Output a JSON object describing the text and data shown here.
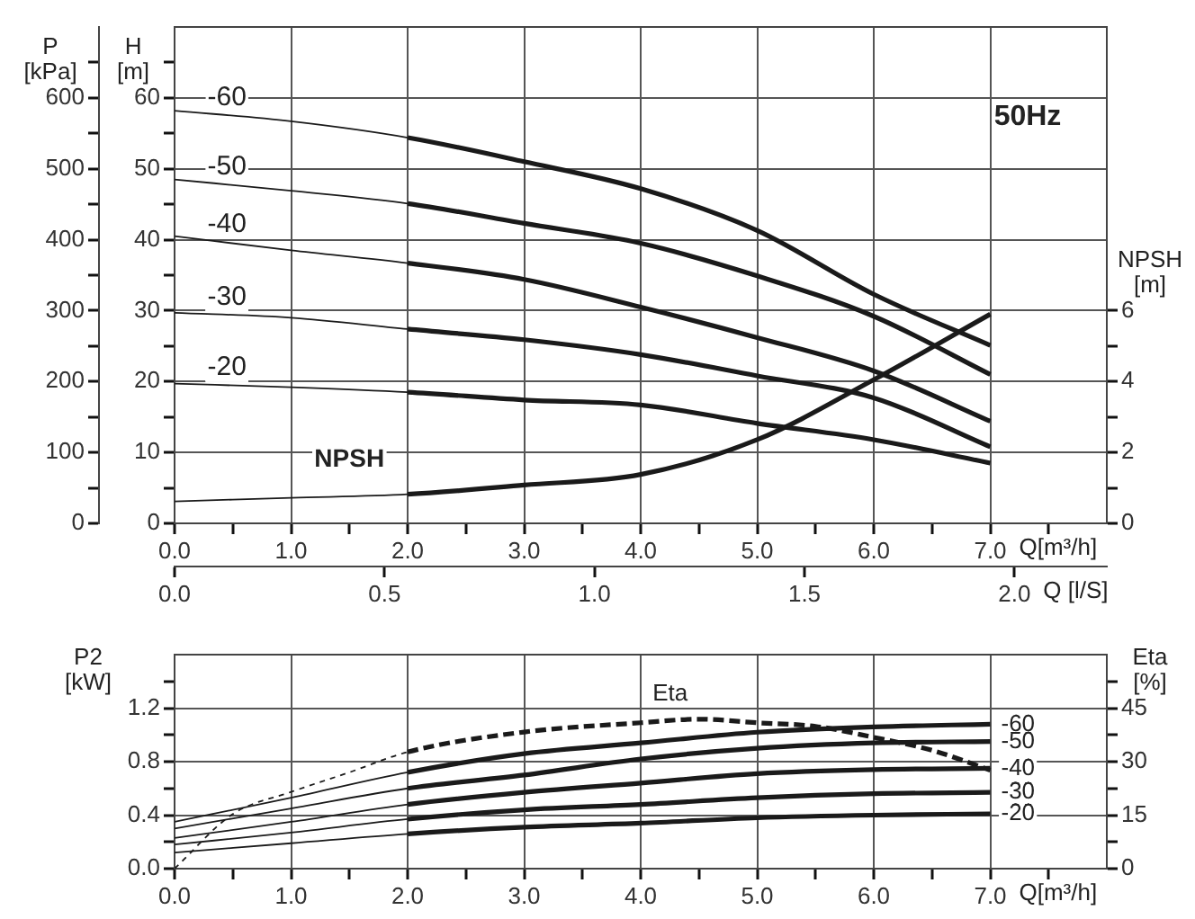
{
  "chart_data": [
    {
      "type": "line",
      "xlabel": "Q[m³/h]",
      "x2label": "Q [l/S]",
      "ylabel": "H [m]",
      "y2label": "NPSH [m]",
      "y3label": "P [kPa]",
      "annotations": [
        "50Hz"
      ],
      "x": [
        0,
        1,
        2,
        3,
        4,
        5,
        6,
        7
      ],
      "series": [
        {
          "name": "-60",
          "color": "#1a1a1a",
          "values": [
            58.2,
            56.7,
            54.4,
            51,
            47.2,
            41.3,
            32.3,
            25.1
          ]
        },
        {
          "name": "-50",
          "color": "#1a1a1a",
          "values": [
            48.5,
            46.9,
            45.1,
            42.3,
            39.5,
            34.9,
            29.2,
            21
          ]
        },
        {
          "name": "-40",
          "color": "#1a1a1a",
          "values": [
            40.5,
            38.5,
            36.7,
            34.4,
            30.5,
            26.2,
            21.5,
            14.4
          ]
        },
        {
          "name": "-30",
          "color": "#1a1a1a",
          "values": [
            29.7,
            29,
            27.4,
            25.9,
            23.8,
            20.8,
            17.7,
            10.8
          ]
        },
        {
          "name": "-20",
          "color": "#1a1a1a",
          "values": [
            19.7,
            19.2,
            18.5,
            17.4,
            16.7,
            14.1,
            11.8,
            8.5
          ]
        },
        {
          "name": "NPSH",
          "color": "#1a1a1a",
          "axis": "y2",
          "values": [
            0.62,
            0.72,
            0.82,
            1.08,
            1.38,
            2.36,
            4.05,
            5.9
          ]
        }
      ],
      "xlim": [
        0,
        8
      ],
      "xticks": [
        {
          "value": 0,
          "label": "0.0"
        },
        {
          "value": 0.5,
          "label": null
        },
        {
          "value": 1,
          "label": "1.0"
        },
        {
          "value": 1.5,
          "label": null
        },
        {
          "value": 2,
          "label": "2.0"
        },
        {
          "value": 2.5,
          "label": null
        },
        {
          "value": 3,
          "label": "3.0"
        },
        {
          "value": 3.5,
          "label": null
        },
        {
          "value": 4,
          "label": "4.0"
        },
        {
          "value": 4.5,
          "label": null
        },
        {
          "value": 5,
          "label": "5.0"
        },
        {
          "value": 5.5,
          "label": null
        },
        {
          "value": 6,
          "label": "6.0"
        },
        {
          "value": 6.5,
          "label": null
        },
        {
          "value": 7,
          "label": "7.0"
        },
        {
          "value": 7.5,
          "label": null
        }
      ],
      "x2lim": [
        0,
        2.22
      ],
      "x2ticks": [
        {
          "value": 0,
          "label": "0.0"
        },
        {
          "value": 0.5,
          "label": "0.5"
        },
        {
          "value": 1,
          "label": "1.0"
        },
        {
          "value": 1.5,
          "label": "1.5"
        },
        {
          "value": 2,
          "label": "2.0"
        }
      ],
      "ylim": [
        0,
        70
      ],
      "yticks": [
        0,
        {
          "value": 5,
          "label": null
        },
        10,
        {
          "value": 15,
          "label": null
        },
        20,
        {
          "value": 25,
          "label": null
        },
        30,
        {
          "value": 35,
          "label": null
        },
        40,
        {
          "value": 45,
          "label": null
        },
        50,
        {
          "value": 55,
          "label": null
        },
        60,
        {
          "value": 65,
          "label": null
        }
      ],
      "y2lim": [
        0,
        14
      ],
      "y2ticks": [
        0,
        {
          "value": 1,
          "label": null
        },
        2,
        {
          "value": 3,
          "label": null
        },
        4,
        {
          "value": 5,
          "label": null
        },
        6
      ],
      "y3lim": [
        0,
        700
      ],
      "y3ticks": [
        0,
        {
          "value": 50,
          "label": null
        },
        100,
        {
          "value": 150,
          "label": null
        },
        200,
        {
          "value": 250,
          "label": null
        },
        300,
        {
          "value": 350,
          "label": null
        },
        400,
        {
          "value": 450,
          "label": null
        },
        500,
        {
          "value": 550,
          "label": null
        },
        600,
        {
          "value": 650,
          "label": null
        }
      ],
      "grid": true,
      "legend": false,
      "marker": "none"
    },
    {
      "type": "line",
      "xlabel": "Q[m³/h]",
      "ylabel": "P2 [kW]",
      "y2label": "Eta [%]",
      "x": [
        0,
        1,
        2,
        3,
        4,
        5,
        6,
        7
      ],
      "series": [
        {
          "name": "-60",
          "color": "#1a1a1a",
          "values": [
            0.35,
            0.53,
            0.72,
            0.86,
            0.94,
            1.02,
            1.06,
            1.08
          ]
        },
        {
          "name": "-50",
          "color": "#1a1a1a",
          "values": [
            0.3,
            0.45,
            0.6,
            0.7,
            0.82,
            0.9,
            0.94,
            0.95
          ]
        },
        {
          "name": "-40",
          "color": "#1a1a1a",
          "values": [
            0.23,
            0.35,
            0.48,
            0.57,
            0.64,
            0.71,
            0.74,
            0.75
          ]
        },
        {
          "name": "-30",
          "color": "#1a1a1a",
          "values": [
            0.18,
            0.27,
            0.37,
            0.44,
            0.48,
            0.53,
            0.56,
            0.57
          ]
        },
        {
          "name": "-20",
          "color": "#1a1a1a",
          "values": [
            0.12,
            0.19,
            0.26,
            0.31,
            0.34,
            0.38,
            0.4,
            0.41
          ]
        },
        {
          "name": "Eta",
          "color": "#1a1a1a",
          "axis": "y2",
          "line_style": "dashed",
          "x": [
            0,
            0.5,
            1,
            1.5,
            2,
            3,
            4,
            4.5,
            5,
            5.5,
            6,
            6.5,
            7
          ],
          "values": [
            0,
            15.3,
            21.5,
            27,
            32.7,
            38.3,
            40.9,
            41.9,
            40.9,
            39.9,
            36.8,
            33.2,
            27.6
          ]
        }
      ],
      "xlim": [
        0,
        8
      ],
      "xticks": [
        {
          "value": 0,
          "label": "0.0"
        },
        {
          "value": 0.5,
          "label": null
        },
        {
          "value": 1,
          "label": "1.0"
        },
        {
          "value": 1.5,
          "label": null
        },
        {
          "value": 2,
          "label": "2.0"
        },
        {
          "value": 2.5,
          "label": null
        },
        {
          "value": 3,
          "label": "3.0"
        },
        {
          "value": 3.5,
          "label": null
        },
        {
          "value": 4,
          "label": "4.0"
        },
        {
          "value": 4.5,
          "label": null
        },
        {
          "value": 5,
          "label": "5.0"
        },
        {
          "value": 5.5,
          "label": null
        },
        {
          "value": 6,
          "label": "6.0"
        },
        {
          "value": 6.5,
          "label": null
        },
        {
          "value": 7,
          "label": "7.0"
        },
        {
          "value": 7.5,
          "label": null
        }
      ],
      "ylim": [
        0,
        1.6
      ],
      "yticks": [
        {
          "value": 0,
          "label": "0.0"
        },
        {
          "value": 0.2,
          "label": null
        },
        {
          "value": 0.4,
          "label": "0.4"
        },
        {
          "value": 0.6,
          "label": null
        },
        {
          "value": 0.8,
          "label": "0.8"
        },
        {
          "value": 1,
          "label": null
        },
        {
          "value": 1.2,
          "label": "1.2"
        },
        {
          "value": 1.4,
          "label": null
        }
      ],
      "y2lim": [
        0,
        60
      ],
      "y2ticks": [
        0,
        {
          "value": 7.5,
          "label": null
        },
        15,
        {
          "value": 22.5,
          "label": null
        },
        30,
        {
          "value": 37.5,
          "label": null
        },
        45,
        {
          "value": 52.5,
          "label": null
        }
      ],
      "grid": true,
      "legend": false,
      "marker": "none"
    }
  ]
}
